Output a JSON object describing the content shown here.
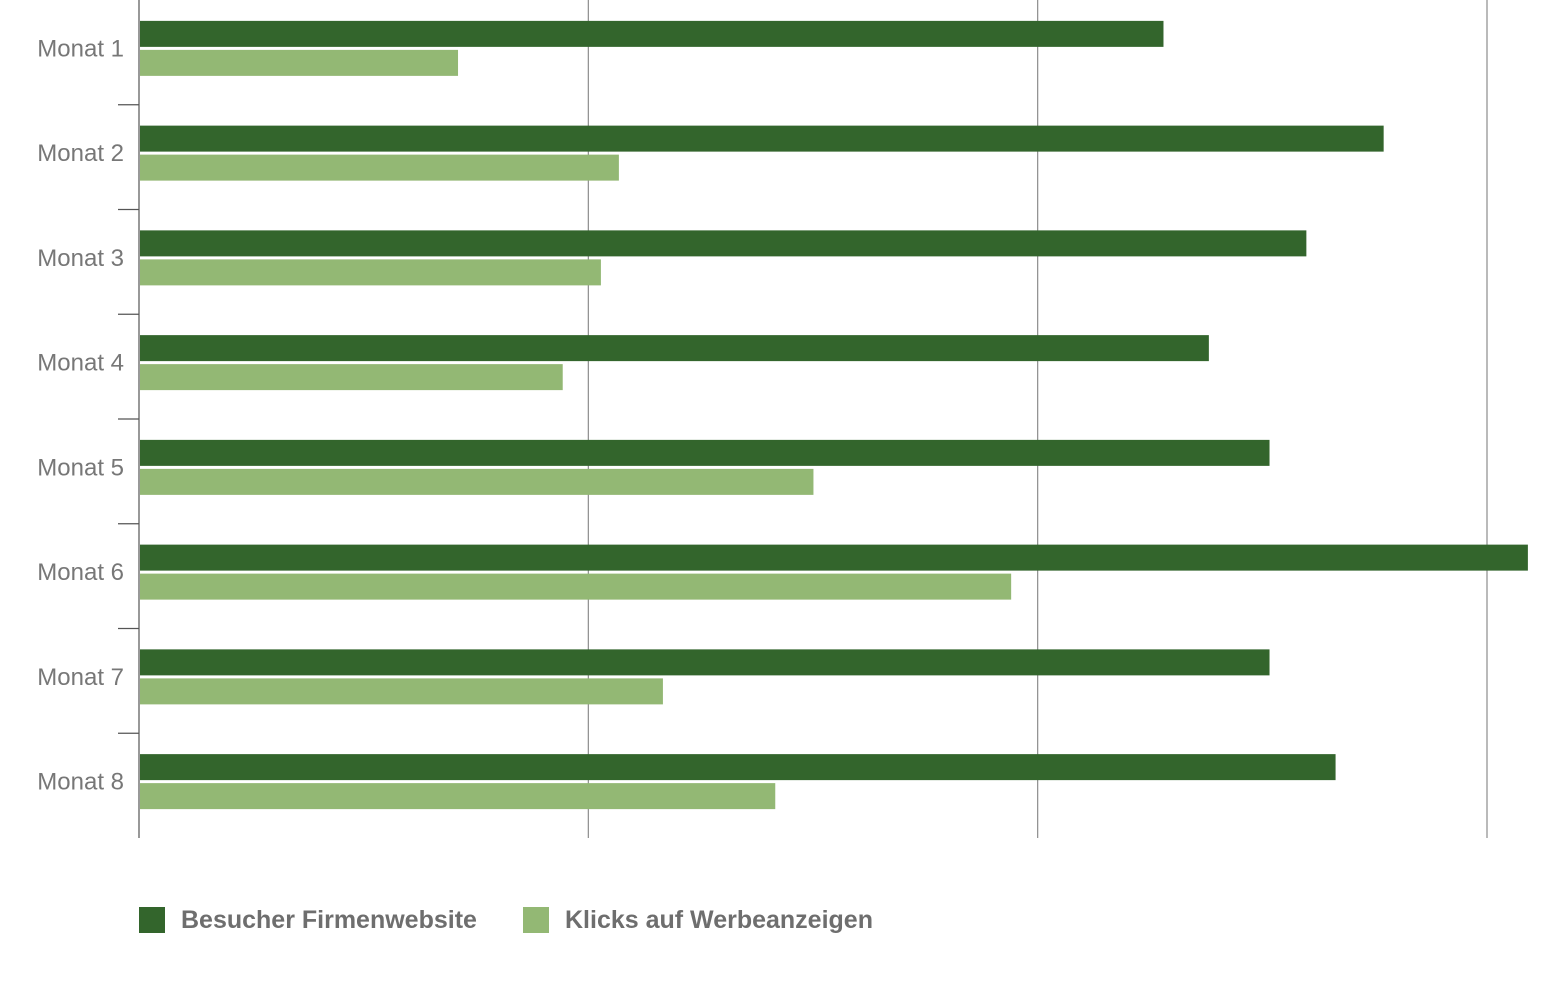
{
  "chart_data": {
    "type": "bar",
    "orientation": "horizontal",
    "categories": [
      "Monat 1",
      "Monat 2",
      "Monat 3",
      "Monat 4",
      "Monat 5",
      "Monat 6",
      "Monat 7",
      "Monat 8"
    ],
    "series": [
      {
        "name": "Besucher Firmenwebsite",
        "color": "#33652c",
        "values": [
          2280,
          2770,
          2598,
          2381,
          2516,
          3091,
          2516,
          2663
        ]
      },
      {
        "name": "Klicks auf Werbeanzeigen",
        "color": "#93b874",
        "values": [
          710,
          1068,
          1028,
          943,
          1501,
          1941,
          1166,
          1416
        ]
      }
    ],
    "xlim": [
      0,
      3100
    ],
    "gridlines": [
      1000,
      2000,
      3000
    ],
    "grid": true,
    "legend_position": "bottom-left",
    "title": "",
    "xlabel": "",
    "ylabel": ""
  }
}
